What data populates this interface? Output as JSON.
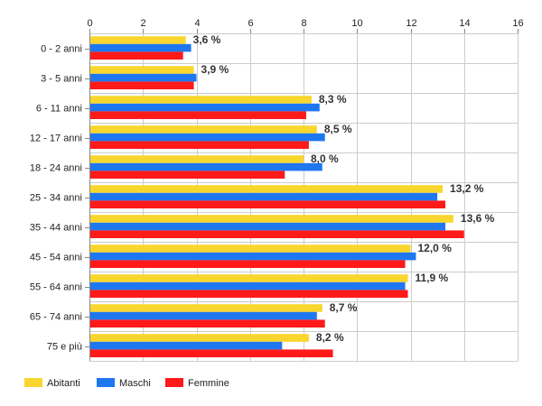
{
  "chart_data": {
    "type": "bar",
    "orientation": "horizontal",
    "categories": [
      "0 - 2 anni",
      "3 - 5 anni",
      "6 - 11 anni",
      "12 - 17 anni",
      "18 - 24 anni",
      "25 - 34 anni",
      "35 - 44 anni",
      "45 - 54 anni",
      "55 - 64 anni",
      "65 - 74 anni",
      "75 e più"
    ],
    "series": [
      {
        "name": "Abitanti",
        "color": "#f9d62e",
        "values": [
          3.6,
          3.9,
          8.3,
          8.5,
          8.0,
          13.2,
          13.6,
          12.0,
          11.9,
          8.7,
          8.2
        ]
      },
      {
        "name": "Maschi",
        "color": "#1f77f0",
        "values": [
          3.8,
          4.0,
          8.6,
          8.8,
          8.7,
          13.0,
          13.3,
          12.2,
          11.8,
          8.5,
          7.2
        ]
      },
      {
        "name": "Femmine",
        "color": "#ff1a1a",
        "values": [
          3.5,
          3.9,
          8.1,
          8.2,
          7.3,
          13.3,
          14.0,
          11.8,
          11.9,
          8.8,
          9.1
        ]
      }
    ],
    "data_labels": [
      "3,6 %",
      "3,9 %",
      "8,3 %",
      "8,5 %",
      "8,0 %",
      "13,2 %",
      "13,6 %",
      "12,0 %",
      "11,9 %",
      "8,7 %",
      "8,2 %"
    ],
    "x_ticks": [
      0,
      2,
      4,
      6,
      8,
      10,
      12,
      14,
      16
    ],
    "xlim": [
      0,
      16
    ],
    "title": "",
    "xlabel": "",
    "ylabel": "",
    "grid": true,
    "axis_position": "top",
    "legend_placement": "bottom-left"
  }
}
